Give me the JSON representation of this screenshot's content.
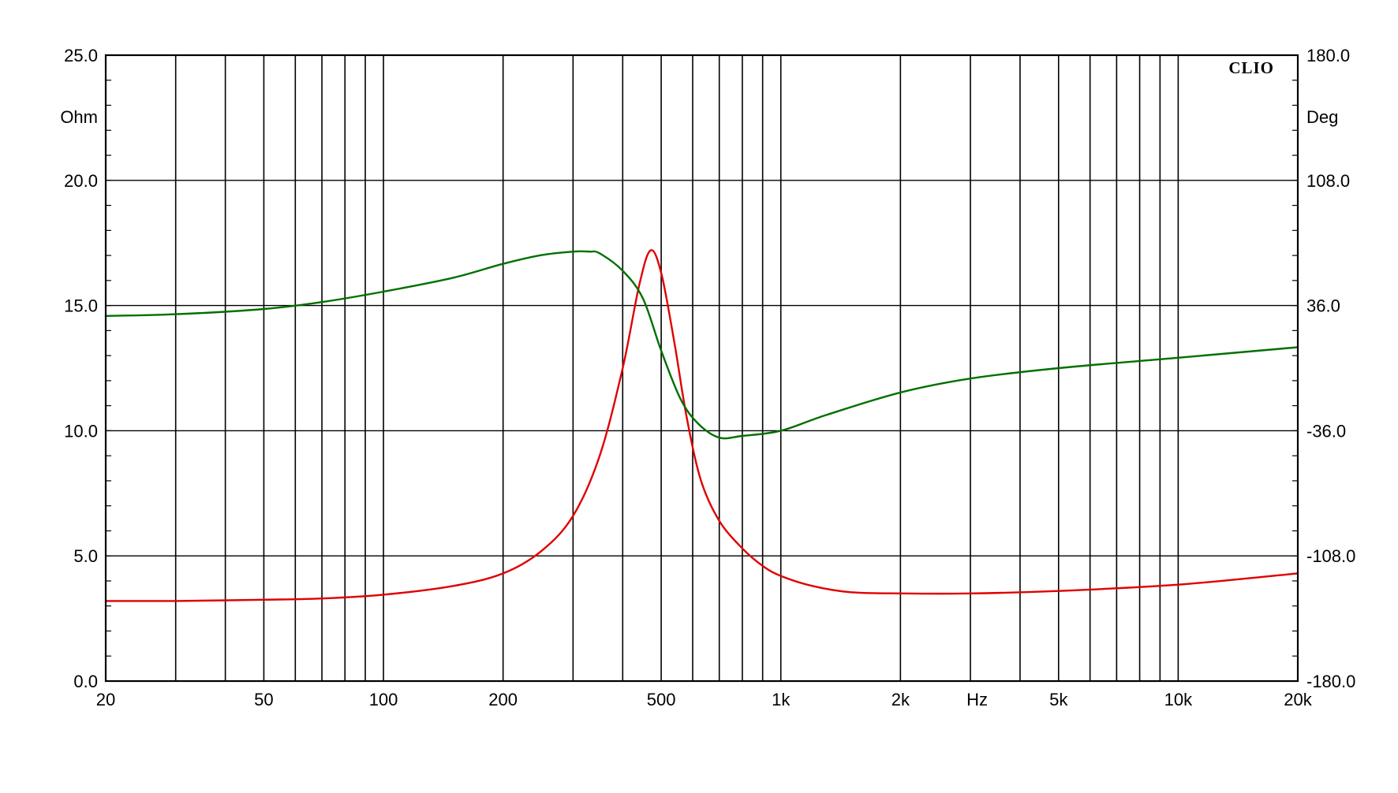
{
  "chart_data": {
    "type": "line",
    "title": "",
    "brand": "CLIO",
    "x_scale": "log",
    "xlim": [
      20,
      20000
    ],
    "xlabel": "Hz",
    "x_ticks": [
      {
        "value": 20,
        "label": "20"
      },
      {
        "value": 50,
        "label": "50"
      },
      {
        "value": 100,
        "label": "100"
      },
      {
        "value": 200,
        "label": "200"
      },
      {
        "value": 500,
        "label": "500"
      },
      {
        "value": 1000,
        "label": "1k"
      },
      {
        "value": 2000,
        "label": "2k"
      },
      {
        "value": 5000,
        "label": "5k"
      },
      {
        "value": 10000,
        "label": "10k"
      },
      {
        "value": 20000,
        "label": "20k"
      }
    ],
    "y_left": {
      "label": "Ohm",
      "ylim": [
        0,
        25
      ],
      "ticks": [
        {
          "value": 0,
          "label": "0.0"
        },
        {
          "value": 5,
          "label": "5.0"
        },
        {
          "value": 10,
          "label": "10.0"
        },
        {
          "value": 15,
          "label": "15.0"
        },
        {
          "value": 20,
          "label": "20.0"
        },
        {
          "value": 25,
          "label": "25.0"
        }
      ]
    },
    "y_right": {
      "label": "Deg",
      "ylim": [
        -180,
        180
      ],
      "ticks": [
        {
          "value": -180,
          "label": "-180.0"
        },
        {
          "value": -108,
          "label": "-108.0"
        },
        {
          "value": -36,
          "label": "-36.0"
        },
        {
          "value": 36,
          "label": "36.0"
        },
        {
          "value": 108,
          "label": "108.0"
        },
        {
          "value": 180,
          "label": "180.0"
        }
      ]
    },
    "grid": true,
    "colors": {
      "impedance": "#e00000",
      "phase": "#007000",
      "grid": "#000000",
      "background": "#ffffff"
    },
    "series": [
      {
        "axis": "left",
        "color": "#e00000",
        "points": [
          [
            20,
            3.2
          ],
          [
            30,
            3.2
          ],
          [
            50,
            3.25
          ],
          [
            70,
            3.3
          ],
          [
            100,
            3.45
          ],
          [
            150,
            3.8
          ],
          [
            200,
            4.3
          ],
          [
            250,
            5.2
          ],
          [
            300,
            6.6
          ],
          [
            350,
            9.0
          ],
          [
            400,
            12.5
          ],
          [
            440,
            15.8
          ],
          [
            470,
            17.2
          ],
          [
            500,
            16.3
          ],
          [
            540,
            13.5
          ],
          [
            580,
            10.5
          ],
          [
            630,
            8.0
          ],
          [
            700,
            6.4
          ],
          [
            800,
            5.3
          ],
          [
            900,
            4.6
          ],
          [
            1000,
            4.2
          ],
          [
            1200,
            3.8
          ],
          [
            1500,
            3.55
          ],
          [
            2000,
            3.5
          ],
          [
            3000,
            3.5
          ],
          [
            5000,
            3.6
          ],
          [
            10000,
            3.85
          ],
          [
            20000,
            4.3
          ]
        ]
      },
      {
        "axis": "right",
        "color": "#007000",
        "points": [
          [
            20,
            30
          ],
          [
            30,
            31
          ],
          [
            50,
            34
          ],
          [
            70,
            38
          ],
          [
            100,
            44
          ],
          [
            150,
            52
          ],
          [
            200,
            60
          ],
          [
            250,
            65
          ],
          [
            300,
            67
          ],
          [
            330,
            67
          ],
          [
            350,
            66
          ],
          [
            400,
            56
          ],
          [
            450,
            40
          ],
          [
            500,
            10
          ],
          [
            560,
            -18
          ],
          [
            620,
            -32
          ],
          [
            700,
            -40
          ],
          [
            800,
            -39
          ],
          [
            1000,
            -36
          ],
          [
            1300,
            -27
          ],
          [
            2000,
            -14
          ],
          [
            3000,
            -6
          ],
          [
            5000,
            0
          ],
          [
            10000,
            6
          ],
          [
            20000,
            12
          ]
        ]
      }
    ]
  }
}
